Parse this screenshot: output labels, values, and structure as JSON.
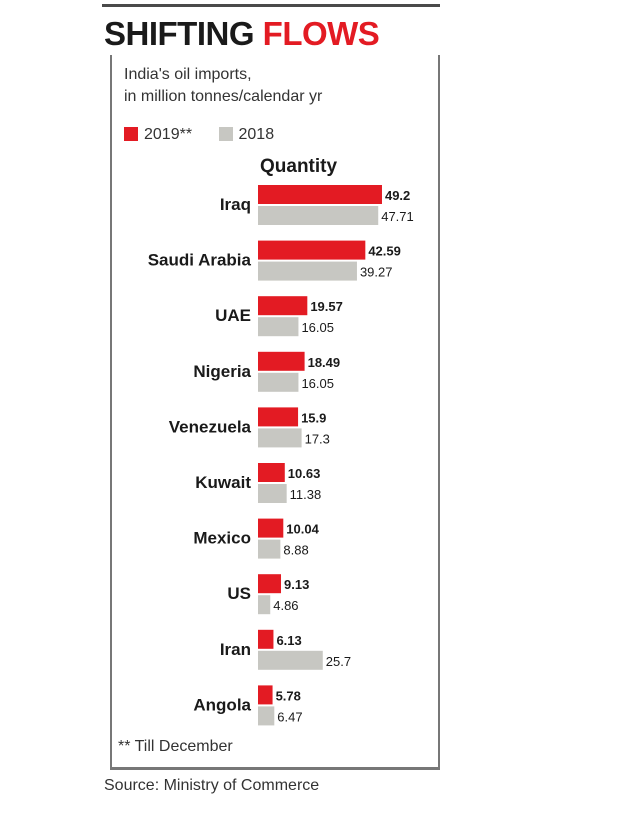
{
  "headline": {
    "word1": "SHIFTING",
    "word2": "FLOWS"
  },
  "subtitle": {
    "line1": "India's oil imports,",
    "line2": "in million tonnes/calendar yr"
  },
  "colors": {
    "accent": "#e31b23",
    "secondary": "#c7c7c2",
    "text": "#1a1a1a"
  },
  "footnote": "** Till December",
  "source": "Source: Ministry of Commerce",
  "chart_data": {
    "type": "bar",
    "orientation": "horizontal",
    "title": "Quantity",
    "categories": [
      "Iraq",
      "Saudi Arabia",
      "UAE",
      "Nigeria",
      "Venezuela",
      "Kuwait",
      "Mexico",
      "US",
      "Iran",
      "Angola"
    ],
    "series": [
      {
        "name": "2019**",
        "values": [
          49.2,
          42.59,
          19.57,
          18.49,
          15.9,
          10.63,
          10.04,
          9.13,
          6.13,
          5.78
        ]
      },
      {
        "name": "2018",
        "values": [
          47.71,
          39.27,
          16.05,
          16.05,
          17.3,
          11.38,
          8.88,
          4.86,
          25.7,
          6.47
        ]
      }
    ],
    "value_labels": [
      [
        "49.2",
        "42.59",
        "19.57",
        "18.49",
        "15.9",
        "10.63",
        "10.04",
        "9.13",
        "6.13",
        "5.78"
      ],
      [
        "47.71",
        "39.27",
        "16.05",
        "16.05",
        "17.3",
        "11.38",
        "8.88",
        "4.86",
        "25.7",
        "6.47"
      ]
    ],
    "xlim": [
      0,
      50
    ],
    "grid": false,
    "legend_position": "top-left"
  }
}
